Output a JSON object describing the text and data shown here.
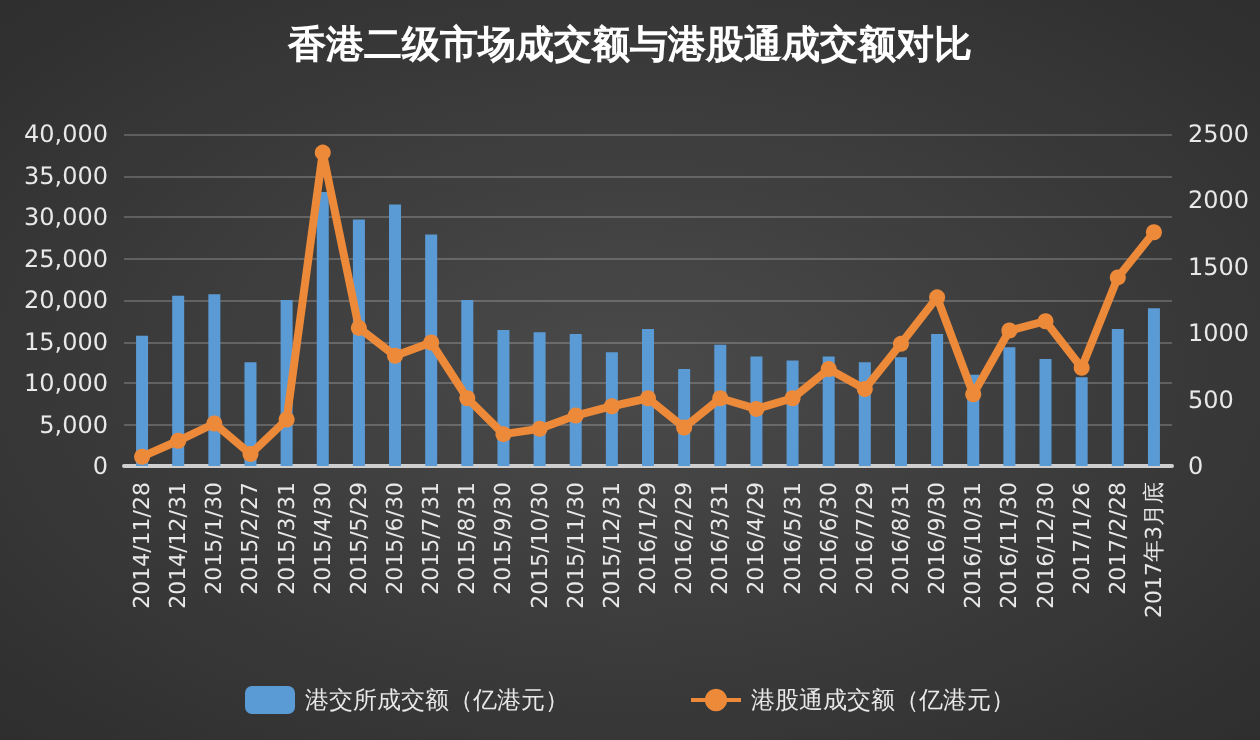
{
  "chart_data": {
    "type": "bar",
    "title": "香港二级市场成交额与港股通成交额对比",
    "categories": [
      "2014/11/28",
      "2014/12/31",
      "2015/1/30",
      "2015/2/27",
      "2015/3/31",
      "2015/4/30",
      "2015/5/29",
      "2015/6/30",
      "2015/7/31",
      "2015/8/31",
      "2015/9/30",
      "2015/10/30",
      "2015/11/30",
      "2015/12/31",
      "2016/1/29",
      "2016/2/29",
      "2016/3/31",
      "2016/4/29",
      "2016/5/31",
      "2016/6/30",
      "2016/7/29",
      "2016/8/31",
      "2016/9/30",
      "2016/10/31",
      "2016/11/30",
      "2016/12/30",
      "2017/1/26",
      "2017/2/28",
      "2017年3月底"
    ],
    "series": [
      {
        "name": "港交所成交额（亿港元）",
        "color": "#5b9bd5",
        "values": [
          15700,
          20500,
          20700,
          12500,
          20000,
          33000,
          29700,
          31500,
          27900,
          20000,
          16400,
          16100,
          15900,
          13700,
          16500,
          11700,
          14600,
          13200,
          12700,
          13200,
          12500,
          13100,
          15900,
          11000,
          14300,
          12900,
          10700,
          16500,
          19000
        ]
      },
      {
        "name": "港股通成交额（亿港元）",
        "type": "line",
        "axis": "y2",
        "color": "#ed8a3a",
        "values": [
          70,
          190,
          320,
          90,
          350,
          2360,
          1040,
          830,
          930,
          510,
          240,
          280,
          380,
          450,
          510,
          290,
          510,
          430,
          510,
          730,
          580,
          920,
          1270,
          540,
          1020,
          1090,
          740,
          1420,
          1760
        ]
      }
    ],
    "ylim": [
      0,
      40000
    ],
    "yticks": [
      0,
      {
        "value": 5000,
        "label": "5,000"
      },
      {
        "value": 10000,
        "label": "10,000"
      },
      {
        "value": 15000,
        "label": "15,000"
      },
      {
        "value": 20000,
        "label": "20,000"
      },
      {
        "value": 25000,
        "label": "25,000"
      },
      {
        "value": 30000,
        "label": "30,000"
      },
      {
        "value": 35000,
        "label": "35,000"
      },
      {
        "value": 40000,
        "label": "40,000"
      }
    ],
    "y2lim": [
      0,
      2500
    ],
    "y2ticks": [
      0,
      500,
      1000,
      1500,
      2000,
      2500
    ],
    "grid": "y",
    "legend": "bottom",
    "marker": "circle",
    "line_style": "solid"
  }
}
